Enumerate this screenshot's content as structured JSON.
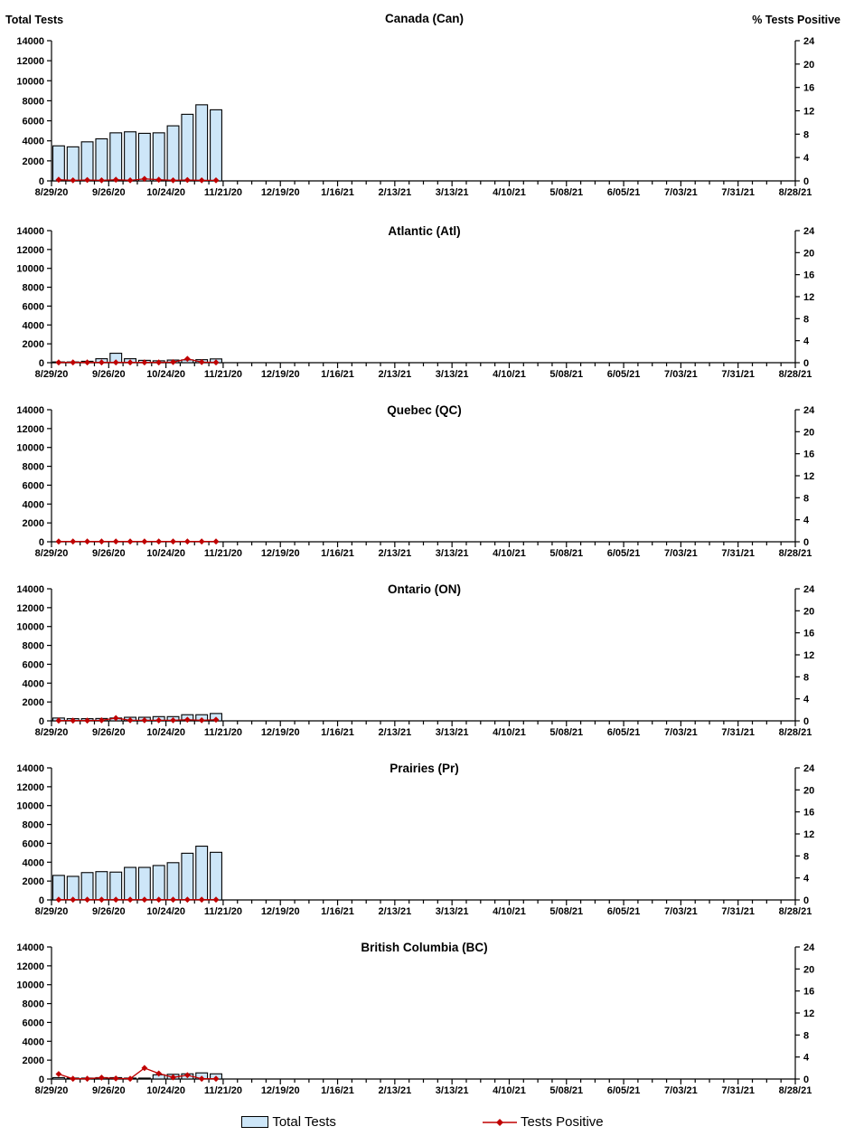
{
  "header": {
    "left_axis_title": "Total Tests",
    "right_axis_title": "% Tests Positive"
  },
  "legend": {
    "items": [
      {
        "label": "Total Tests",
        "marker": "bar-swatch"
      },
      {
        "label": "Tests Positive",
        "marker": "line-diamond-swatch"
      }
    ]
  },
  "colors": {
    "bar_fill": "#CDE6F8",
    "bar_stroke": "#000000",
    "positive_line": "#C00000",
    "axis": "#000000",
    "text": "#000000",
    "background": "#FFFFFF"
  },
  "axes": {
    "y_left": {
      "title": "Total Tests",
      "min": 0,
      "max": 14000,
      "step": 2000
    },
    "y_right": {
      "title": "% Tests Positive",
      "min": 0,
      "max": 24,
      "step": 4
    },
    "x": {
      "tick_labels": [
        "8/29/20",
        "9/26/20",
        "10/24/20",
        "11/21/20",
        "12/19/20",
        "1/16/21",
        "2/13/21",
        "3/13/21",
        "4/10/21",
        "5/08/21",
        "6/05/21",
        "7/03/21",
        "7/31/21",
        "8/28/21"
      ],
      "weeks_between_labels": 4,
      "total_weeks": 52
    }
  },
  "chart_data": [
    {
      "type": "bar+line",
      "title": "Canada (Can)",
      "categories": [
        "8/29/20",
        "9/5/20",
        "9/12/20",
        "9/19/20",
        "9/26/20",
        "10/3/20",
        "10/10/20",
        "10/17/20",
        "10/24/20",
        "10/31/20",
        "11/7/20",
        "11/14/20"
      ],
      "series": [
        {
          "name": "Total Tests",
          "axis": "left",
          "values": [
            3500,
            3400,
            3900,
            4200,
            4800,
            4900,
            4750,
            4800,
            5500,
            6650,
            7600,
            7100
          ]
        },
        {
          "name": "Tests Positive",
          "axis": "right",
          "values": [
            0.2,
            0.1,
            0.15,
            0.1,
            0.2,
            0.1,
            0.35,
            0.2,
            0.1,
            0.15,
            0.1,
            0.1
          ]
        }
      ]
    },
    {
      "type": "bar+line",
      "title": "Atlantic (Atl)",
      "categories": [
        "8/29/20",
        "9/5/20",
        "9/12/20",
        "9/19/20",
        "9/26/20",
        "10/3/20",
        "10/10/20",
        "10/17/20",
        "10/24/20",
        "10/31/20",
        "11/7/20",
        "11/14/20"
      ],
      "series": [
        {
          "name": "Total Tests",
          "axis": "left",
          "values": [
            80,
            80,
            150,
            420,
            1000,
            420,
            250,
            200,
            280,
            300,
            320,
            400
          ]
        },
        {
          "name": "Tests Positive",
          "axis": "right",
          "values": [
            0.05,
            0.05,
            0.05,
            0.05,
            0.05,
            0.05,
            0.05,
            0.05,
            0.1,
            0.7,
            0.1,
            0.05
          ]
        }
      ]
    },
    {
      "type": "bar+line",
      "title": "Quebec (QC)",
      "categories": [
        "8/29/20",
        "9/5/20",
        "9/12/20",
        "9/19/20",
        "9/26/20",
        "10/3/20",
        "10/10/20",
        "10/17/20",
        "10/24/20",
        "10/31/20",
        "11/7/20",
        "11/14/20"
      ],
      "series": [
        {
          "name": "Total Tests",
          "axis": "left",
          "values": [
            0,
            0,
            0,
            0,
            0,
            0,
            0,
            0,
            0,
            0,
            0,
            0
          ]
        },
        {
          "name": "Tests Positive",
          "axis": "right",
          "values": [
            0.05,
            0.05,
            0.05,
            0.05,
            0.05,
            0.05,
            0.05,
            0.05,
            0.05,
            0.05,
            0.05,
            0.05
          ]
        }
      ]
    },
    {
      "type": "bar+line",
      "title": "Ontario (ON)",
      "categories": [
        "8/29/20",
        "9/5/20",
        "9/12/20",
        "9/19/20",
        "9/26/20",
        "10/3/20",
        "10/10/20",
        "10/17/20",
        "10/24/20",
        "10/31/20",
        "11/7/20",
        "11/14/20"
      ],
      "series": [
        {
          "name": "Total Tests",
          "axis": "left",
          "values": [
            300,
            230,
            230,
            250,
            300,
            380,
            380,
            450,
            450,
            650,
            650,
            780
          ]
        },
        {
          "name": "Tests Positive",
          "axis": "right",
          "values": [
            0.05,
            0.05,
            0.05,
            0.1,
            0.5,
            0.1,
            0.1,
            0.1,
            0.1,
            0.2,
            0.1,
            0.2
          ]
        }
      ]
    },
    {
      "type": "bar+line",
      "title": "Prairies (Pr)",
      "categories": [
        "8/29/20",
        "9/5/20",
        "9/12/20",
        "9/19/20",
        "9/26/20",
        "10/3/20",
        "10/10/20",
        "10/17/20",
        "10/24/20",
        "10/31/20",
        "11/7/20",
        "11/14/20"
      ],
      "series": [
        {
          "name": "Total Tests",
          "axis": "left",
          "values": [
            2600,
            2500,
            2900,
            3000,
            2950,
            3450,
            3450,
            3650,
            3950,
            4950,
            5700,
            5050
          ]
        },
        {
          "name": "Tests Positive",
          "axis": "right",
          "values": [
            0.05,
            0.05,
            0.05,
            0.05,
            0.05,
            0.05,
            0.05,
            0.05,
            0.05,
            0.05,
            0.05,
            0.05
          ]
        }
      ]
    },
    {
      "type": "bar+line",
      "title": "British Columbia (BC)",
      "categories": [
        "8/29/20",
        "9/5/20",
        "9/12/20",
        "9/19/20",
        "9/26/20",
        "10/3/20",
        "10/10/20",
        "10/17/20",
        "10/24/20",
        "10/31/20",
        "11/7/20",
        "11/14/20"
      ],
      "series": [
        {
          "name": "Total Tests",
          "axis": "left",
          "values": [
            150,
            100,
            100,
            150,
            150,
            100,
            100,
            450,
            500,
            550,
            650,
            550
          ]
        },
        {
          "name": "Tests Positive",
          "axis": "right",
          "values": [
            0.9,
            0.05,
            0.05,
            0.25,
            0.1,
            0.05,
            2.0,
            1.0,
            0.3,
            0.7,
            0.05,
            0.05
          ]
        }
      ]
    }
  ]
}
